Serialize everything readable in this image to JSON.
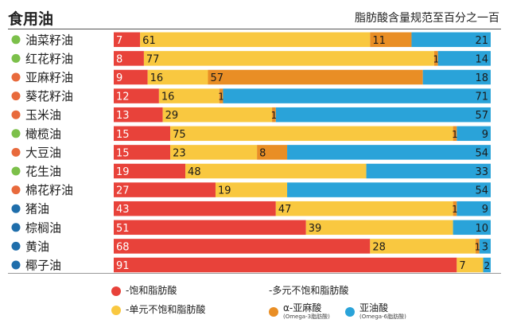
{
  "title": "食用油",
  "subtitle": "脂肪酸含量规范至百分之一百",
  "colors": {
    "saturated": "#e8423a",
    "mono": "#f9c840",
    "alpha": "#e98e25",
    "omega6": "#2aa3d9",
    "dot_green": "#7cc04a",
    "dot_orange": "#e86a3c",
    "dot_blue": "#1f6eab"
  },
  "legend": {
    "saturated": "-饱和脂肪酸",
    "poly": "-多元不饱和脂肪酸",
    "mono": "-单元不饱和脂肪酸",
    "alpha": "α-亚麻酸",
    "alpha_sub": "(Omega-3脂肪酸)",
    "omega6": "亚油酸",
    "omega6_sub": "(Omega-6脂肪酸)"
  },
  "chart_data": {
    "type": "bar",
    "orientation": "horizontal",
    "stacked": true,
    "title": "食用油",
    "subtitle": "脂肪酸含量规范至百分之一百",
    "xlim": [
      0,
      100
    ],
    "categories": [
      "油菜籽油",
      "红花籽油",
      "亚麻籽油",
      "葵花籽油",
      "玉米油",
      "橄榄油",
      "大豆油",
      "花生油",
      "棉花籽油",
      "猪油",
      "棕榈油",
      "黄油",
      "椰子油"
    ],
    "category_dot": [
      "dot_green",
      "dot_green",
      "dot_orange",
      "dot_orange",
      "dot_orange",
      "dot_green",
      "dot_orange",
      "dot_green",
      "dot_orange",
      "dot_blue",
      "dot_blue",
      "dot_blue",
      "dot_blue"
    ],
    "series": [
      {
        "name": "饱和脂肪酸",
        "color_key": "saturated",
        "values": [
          7,
          8,
          9,
          12,
          13,
          15,
          15,
          19,
          27,
          43,
          51,
          68,
          91
        ]
      },
      {
        "name": "单元不饱和脂肪酸",
        "color_key": "mono",
        "values": [
          61,
          77,
          16,
          16,
          29,
          75,
          23,
          48,
          19,
          47,
          39,
          28,
          7
        ]
      },
      {
        "name": "α-亚麻酸",
        "color_key": "alpha",
        "values": [
          11,
          1,
          57,
          1,
          1,
          1,
          8,
          0,
          0,
          1,
          0,
          1,
          0
        ]
      },
      {
        "name": "亚油酸",
        "color_key": "omega6",
        "values": [
          21,
          14,
          18,
          71,
          57,
          9,
          54,
          33,
          54,
          9,
          10,
          3,
          2
        ]
      }
    ]
  }
}
